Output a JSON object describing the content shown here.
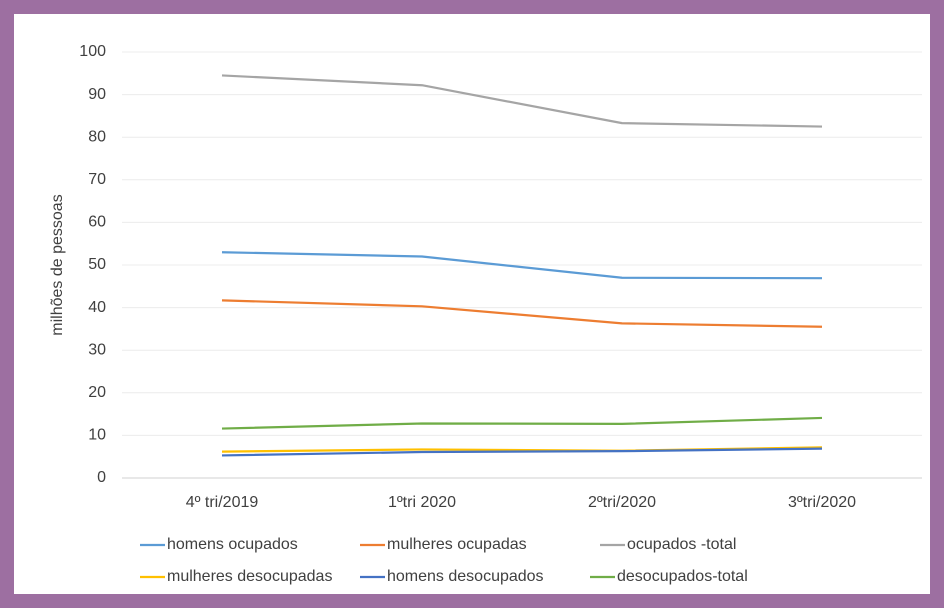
{
  "chart_data": {
    "type": "line",
    "y_label": "milhões de pessoas",
    "categories": [
      "4º tri/2019",
      "1ºtri 2020",
      "2ºtri/2020",
      "3ºtri/2020"
    ],
    "series": [
      {
        "name": "homens ocupados",
        "color": "#5b9bd5",
        "values": [
          53,
          52,
          47,
          46.9
        ]
      },
      {
        "name": "mulheres ocupadas",
        "color": "#ed7d31",
        "values": [
          41.7,
          40.3,
          36.3,
          35.5
        ]
      },
      {
        "name": "ocupados -total",
        "color": "#a5a5a5",
        "values": [
          94.5,
          92.2,
          83.3,
          82.5
        ]
      },
      {
        "name": "mulheres desocupadas",
        "color": "#ffc000",
        "values": [
          6.2,
          6.7,
          6.4,
          7.2
        ]
      },
      {
        "name": "homens desocupados",
        "color": "#4472c4",
        "values": [
          5.3,
          6.1,
          6.3,
          6.9
        ]
      },
      {
        "name": "desocupados-total",
        "color": "#70ad47",
        "values": [
          11.6,
          12.8,
          12.7,
          14.1
        ]
      }
    ],
    "ylim": [
      0,
      100
    ],
    "yticks": [
      0,
      10,
      20,
      30,
      40,
      50,
      60,
      70,
      80,
      90,
      100
    ],
    "grid": true,
    "legend": "bottom"
  }
}
